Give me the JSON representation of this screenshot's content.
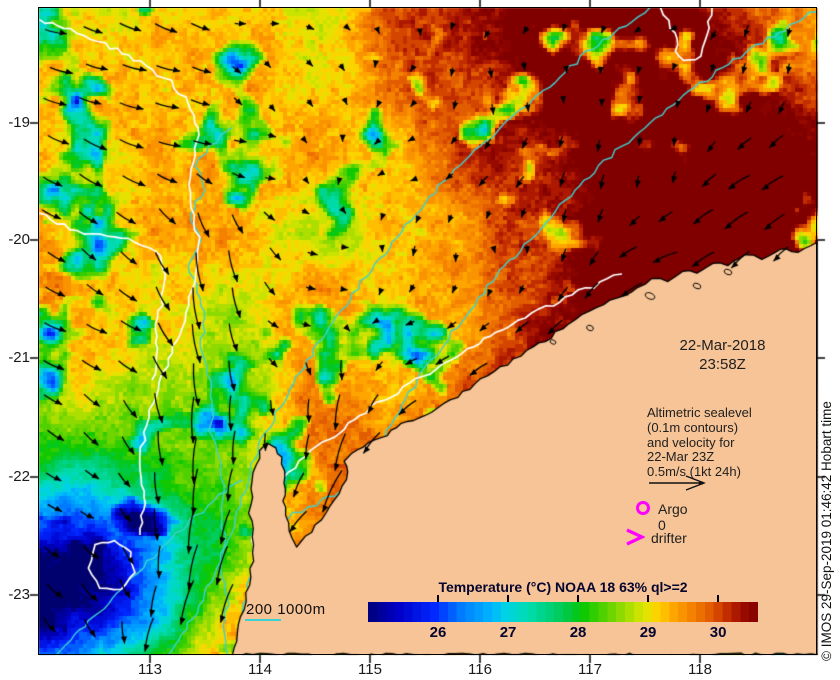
{
  "overlay": {
    "date": "22-Mar-2018",
    "time": "23:58Z"
  },
  "legend": {
    "lines": [
      "Altimetric sealevel",
      "(0.1m contours)",
      "and velocity for",
      "22-Mar 23Z",
      "0.5m/s (1kt 24h)"
    ],
    "argo_label": "Argo 0",
    "drifter_label": "drifter"
  },
  "bathy": {
    "label": "200  1000m"
  },
  "axes": {
    "lat_labels": [
      "-19",
      "-20",
      "-21",
      "-22",
      "-23"
    ],
    "lon_labels": [
      "113",
      "114",
      "115",
      "116",
      "117",
      "118"
    ],
    "lat_values": [
      -19,
      -20,
      -21,
      -22,
      -23
    ],
    "lon_values": [
      113,
      114,
      115,
      116,
      117,
      118
    ]
  },
  "map": {
    "lon_range": [
      112.0,
      119.07
    ],
    "lat_range": [
      -23.5,
      -18.02
    ],
    "projection": "lat-lon grid, SST raster with velocity vectors, altimetric sealevel contours (white) and bathymetry contours (cyan)"
  },
  "colorbar": {
    "title": "Temperature (°C) NOAA 18 63% ql>=2",
    "tick_labels": [
      "26",
      "27",
      "28",
      "29",
      "30"
    ],
    "tick_values": [
      26,
      27,
      28,
      29,
      30
    ],
    "range": [
      25.0,
      30.57
    ],
    "palette": [
      [
        25.0,
        "#00006E"
      ],
      [
        25.5,
        "#0000C8"
      ],
      [
        26.0,
        "#0028FF"
      ],
      [
        26.4,
        "#0080FF"
      ],
      [
        26.8,
        "#00B4FF"
      ],
      [
        27.0,
        "#00D2E6"
      ],
      [
        27.3,
        "#00DCB4"
      ],
      [
        27.6,
        "#00D27D"
      ],
      [
        27.9,
        "#00C83C"
      ],
      [
        28.1,
        "#0AC800"
      ],
      [
        28.4,
        "#55D200"
      ],
      [
        28.7,
        "#A0DC00"
      ],
      [
        28.95,
        "#DCE600"
      ],
      [
        29.15,
        "#FFD200"
      ],
      [
        29.4,
        "#FFA000"
      ],
      [
        29.7,
        "#F07800"
      ],
      [
        29.95,
        "#DC5000"
      ],
      [
        30.15,
        "#BE2800"
      ],
      [
        30.35,
        "#9B0A00"
      ],
      [
        30.57,
        "#800000"
      ]
    ]
  },
  "watermark": {
    "text": "© IMOS 29-Sep-2019 01:46:42 Hobart time"
  },
  "colors": {
    "land": "#F6C496",
    "coastline": "#000000",
    "bathy_contour": "#3CD2D2",
    "ssh_contour": "#FFFFFF",
    "arrow": "#000000",
    "marker_magenta": "#FF00FF",
    "frame": "#000000",
    "page_bg": "#FFFFFF"
  }
}
